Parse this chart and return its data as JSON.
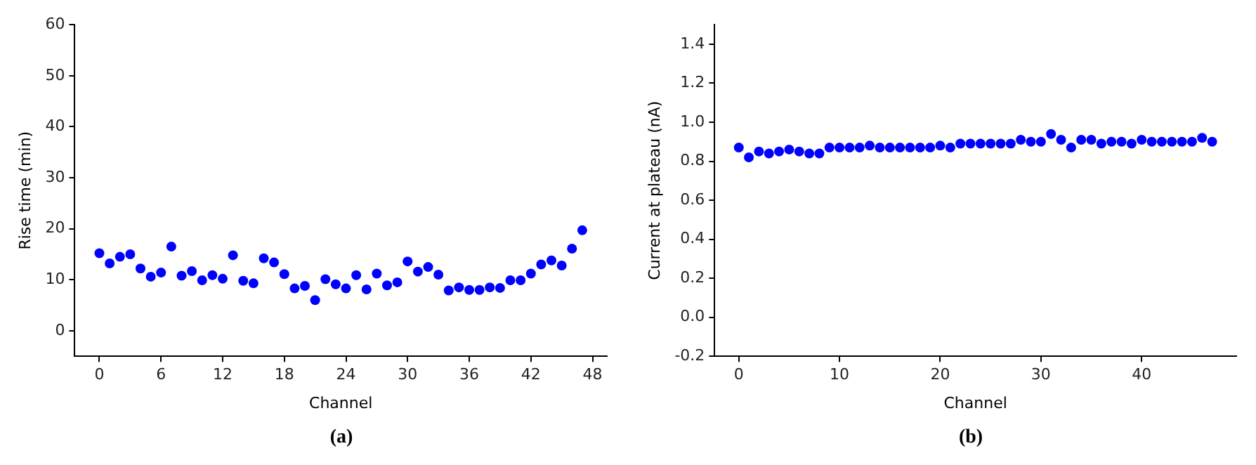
{
  "chart_data": [
    {
      "type": "scatter",
      "xlabel": "Channel",
      "ylabel": "Rise time (min)",
      "annotations": [
        "(a)"
      ],
      "marker": "circle",
      "grid": false,
      "legend": false,
      "x": [
        0,
        1,
        2,
        3,
        4,
        5,
        6,
        7,
        8,
        9,
        10,
        11,
        12,
        13,
        14,
        15,
        16,
        17,
        18,
        19,
        20,
        21,
        22,
        23,
        24,
        25,
        26,
        27,
        28,
        29,
        30,
        31,
        32,
        33,
        34,
        35,
        36,
        37,
        38,
        39,
        40,
        41,
        42,
        43,
        44,
        45,
        46,
        47
      ],
      "series": [
        {
          "color": "#0000ff",
          "values": [
            15.2,
            13.2,
            14.5,
            15,
            12.2,
            10.6,
            11.4,
            16.5,
            10.8,
            11.7,
            9.9,
            10.9,
            10.2,
            14.8,
            9.8,
            9.3,
            14.2,
            13.4,
            11.1,
            8.3,
            8.8,
            6,
            10.1,
            9.1,
            8.3,
            10.9,
            8.1,
            11.2,
            8.9,
            9.5,
            13.6,
            11.6,
            12.5,
            11,
            7.9,
            8.5,
            8,
            8,
            8.5,
            8.4,
            9.9,
            9.9,
            11.2,
            13,
            13.8,
            12.8,
            16.1,
            19.7
          ]
        }
      ],
      "xlim": [
        -2.4,
        49.4
      ],
      "xticks": [
        0,
        6,
        12,
        18,
        24,
        30,
        36,
        42,
        48
      ],
      "ylim": [
        -5,
        60
      ],
      "yticks": [
        0,
        10,
        20,
        30,
        40,
        50,
        60
      ]
    },
    {
      "type": "scatter",
      "xlabel": "Channel",
      "ylabel": "Current at plateau (nA)",
      "annotations": [
        "(b)"
      ],
      "marker": "circle",
      "grid": false,
      "legend": false,
      "x": [
        0,
        1,
        2,
        3,
        4,
        5,
        6,
        7,
        8,
        9,
        10,
        11,
        12,
        13,
        14,
        15,
        16,
        17,
        18,
        19,
        20,
        21,
        22,
        23,
        24,
        25,
        26,
        27,
        28,
        29,
        30,
        31,
        32,
        33,
        34,
        35,
        36,
        37,
        38,
        39,
        40,
        41,
        42,
        43,
        44,
        45,
        46,
        47
      ],
      "series": [
        {
          "color": "#0000ff",
          "values": [
            0.87,
            0.82,
            0.85,
            0.84,
            0.85,
            0.86,
            0.85,
            0.84,
            0.84,
            0.87,
            0.87,
            0.87,
            0.87,
            0.88,
            0.87,
            0.87,
            0.87,
            0.87,
            0.87,
            0.87,
            0.88,
            0.87,
            0.89,
            0.89,
            0.89,
            0.89,
            0.89,
            0.89,
            0.91,
            0.9,
            0.9,
            0.94,
            0.91,
            0.87,
            0.91,
            0.91,
            0.89,
            0.9,
            0.9,
            0.89,
            0.91,
            0.9,
            0.9,
            0.9,
            0.9,
            0.9,
            0.92,
            0.9
          ]
        }
      ],
      "xlim": [
        -2.4,
        49.4
      ],
      "xticks": [
        0,
        10,
        20,
        30,
        40
      ],
      "ylim": [
        -0.2,
        1.5
      ],
      "yticks": [
        -0.2,
        {
          "value": 0,
          "label": "0.0"
        },
        0.2,
        0.4,
        0.6,
        0.8,
        {
          "value": 1,
          "label": "1.0"
        },
        1.2,
        1.4
      ]
    }
  ]
}
